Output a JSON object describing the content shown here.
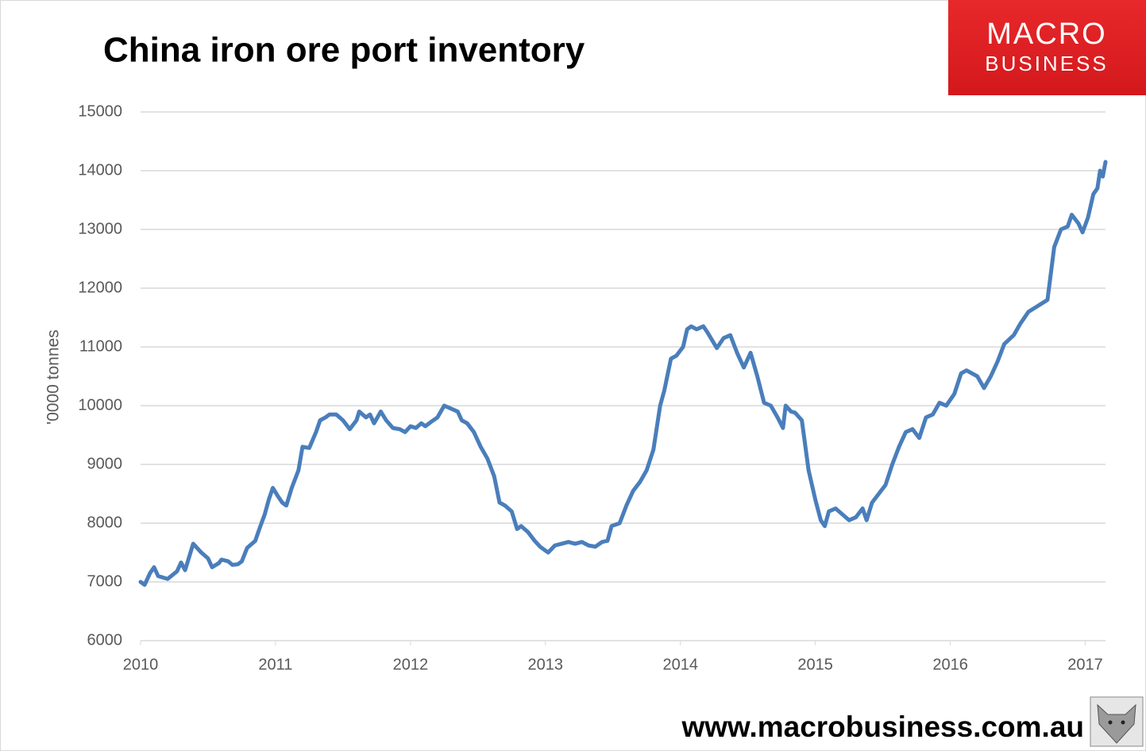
{
  "chart_data": {
    "type": "line",
    "title": "China iron ore port inventory",
    "y_label": "'0000 tonnes",
    "x": [
      2010.0,
      2010.03,
      2010.07,
      2010.1,
      2010.13,
      2010.2,
      2010.27,
      2010.3,
      2010.33,
      2010.35,
      2010.39,
      2010.45,
      2010.5,
      2010.53,
      2010.58,
      2010.6,
      2010.65,
      2010.68,
      2010.72,
      2010.75,
      2010.79,
      2010.85,
      2010.88,
      2010.92,
      2010.95,
      2010.98,
      2011.02,
      2011.05,
      2011.08,
      2011.12,
      2011.17,
      2011.2,
      2011.25,
      2011.3,
      2011.33,
      2011.37,
      2011.4,
      2011.45,
      2011.5,
      2011.55,
      2011.6,
      2011.62,
      2011.67,
      2011.7,
      2011.73,
      2011.78,
      2011.82,
      2011.87,
      2011.92,
      2011.96,
      2012.0,
      2012.04,
      2012.08,
      2012.11,
      2012.15,
      2012.2,
      2012.25,
      2012.3,
      2012.35,
      2012.38,
      2012.42,
      2012.47,
      2012.52,
      2012.57,
      2012.62,
      2012.66,
      2012.7,
      2012.75,
      2012.79,
      2012.82,
      2012.87,
      2012.92,
      2012.96,
      2013.02,
      2013.07,
      2013.12,
      2013.17,
      2013.22,
      2013.27,
      2013.32,
      2013.37,
      2013.42,
      2013.46,
      2013.49,
      2013.55,
      2013.6,
      2013.65,
      2013.7,
      2013.75,
      2013.8,
      2013.85,
      2013.88,
      2013.93,
      2013.97,
      2014.02,
      2014.05,
      2014.08,
      2014.12,
      2014.17,
      2014.2,
      2014.27,
      2014.32,
      2014.37,
      2014.42,
      2014.47,
      2014.52,
      2014.57,
      2014.62,
      2014.67,
      2014.72,
      2014.76,
      2014.78,
      2014.82,
      2014.85,
      2014.9,
      2014.95,
      2015.0,
      2015.04,
      2015.07,
      2015.1,
      2015.15,
      2015.2,
      2015.25,
      2015.3,
      2015.35,
      2015.38,
      2015.42,
      2015.47,
      2015.52,
      2015.57,
      2015.62,
      2015.67,
      2015.72,
      2015.77,
      2015.82,
      2015.87,
      2015.92,
      2015.97,
      2016.03,
      2016.08,
      2016.12,
      2016.2,
      2016.25,
      2016.3,
      2016.35,
      2016.4,
      2016.47,
      2016.52,
      2016.58,
      2016.65,
      2016.72,
      2016.77,
      2016.82,
      2016.87,
      2016.9,
      2016.95,
      2016.98,
      2017.02,
      2017.06,
      2017.09,
      2017.11,
      2017.13,
      2017.15
    ],
    "series": [
      {
        "name": "China iron ore port inventory",
        "color": "#4a7ebb",
        "values": [
          7000,
          6950,
          7150,
          7250,
          7100,
          7050,
          7180,
          7330,
          7200,
          7350,
          7650,
          7500,
          7400,
          7250,
          7320,
          7380,
          7350,
          7290,
          7300,
          7350,
          7580,
          7700,
          7900,
          8150,
          8400,
          8600,
          8450,
          8350,
          8300,
          8600,
          8900,
          9300,
          9280,
          9550,
          9750,
          9800,
          9850,
          9850,
          9750,
          9600,
          9750,
          9900,
          9800,
          9850,
          9700,
          9900,
          9750,
          9620,
          9600,
          9550,
          9650,
          9620,
          9700,
          9650,
          9720,
          9800,
          10000,
          9950,
          9900,
          9750,
          9700,
          9550,
          9300,
          9100,
          8800,
          8350,
          8300,
          8200,
          7900,
          7950,
          7850,
          7700,
          7600,
          7500,
          7620,
          7650,
          7680,
          7650,
          7680,
          7620,
          7600,
          7680,
          7700,
          7950,
          8000,
          8300,
          8550,
          8700,
          8900,
          9250,
          10000,
          10250,
          10800,
          10850,
          11000,
          11300,
          11350,
          11300,
          11350,
          11250,
          10980,
          11150,
          11200,
          10900,
          10650,
          10900,
          10500,
          10050,
          10000,
          9800,
          9620,
          10000,
          9900,
          9880,
          9750,
          8900,
          8400,
          8050,
          7950,
          8200,
          8250,
          8150,
          8050,
          8100,
          8250,
          8050,
          8350,
          8500,
          8650,
          9000,
          9300,
          9550,
          9600,
          9450,
          9800,
          9850,
          10050,
          10000,
          10200,
          10550,
          10600,
          10500,
          10300,
          10500,
          10750,
          11050,
          11200,
          11400,
          11600,
          11700,
          11800,
          12700,
          13000,
          13050,
          13250,
          13100,
          12950,
          13200,
          13600,
          13700,
          14000,
          13900,
          14150
        ]
      }
    ],
    "xlim": [
      2010,
      2017.15
    ],
    "xticks": [
      2010,
      2011,
      2012,
      2013,
      2014,
      2015,
      2016,
      2017
    ],
    "ylim": [
      6000,
      15000
    ],
    "yticks": [
      6000,
      7000,
      8000,
      9000,
      10000,
      11000,
      12000,
      13000,
      14000,
      15000
    ],
    "grid": true
  },
  "logo": {
    "line1": "MACRO",
    "line2": "BUSINESS"
  },
  "footer": "www.macrobusiness.com.au"
}
